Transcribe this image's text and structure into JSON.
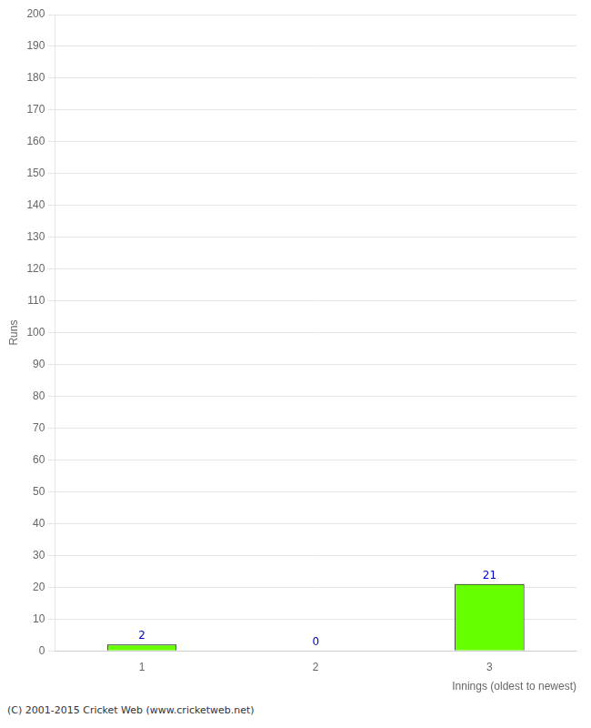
{
  "chart_data": {
    "type": "bar",
    "categories": [
      "1",
      "2",
      "3"
    ],
    "values": [
      2,
      0,
      21
    ],
    "color": "#66ff00",
    "xlabel": "Innings (oldest to newest)",
    "ylabel": "Runs",
    "ylim": [
      0,
      200
    ],
    "yticks": [
      0,
      10,
      20,
      30,
      40,
      50,
      60,
      70,
      80,
      90,
      100,
      110,
      120,
      130,
      140,
      150,
      160,
      170,
      180,
      190,
      200
    ],
    "grid": "y",
    "data_labels": true,
    "footer": "(C) 2001-2015 Cricket Web (www.cricketweb.net)"
  }
}
